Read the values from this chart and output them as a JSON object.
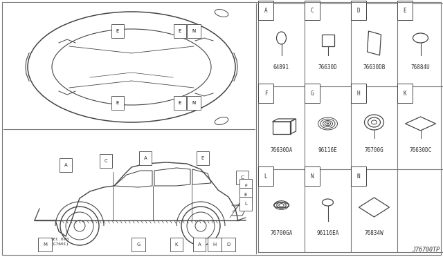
{
  "bg_color": "#ffffff",
  "line_color": "#444444",
  "grid_color": "#777777",
  "text_color": "#333333",
  "diagram_ref": "J76700TP",
  "parts": [
    {
      "label": "A",
      "part_num": "64891",
      "row": 0,
      "col": 0,
      "shape": "oval_stem"
    },
    {
      "label": "C",
      "part_num": "76630D",
      "row": 0,
      "col": 1,
      "shape": "square_stem"
    },
    {
      "label": "D",
      "part_num": "76630DB",
      "row": 0,
      "col": 2,
      "shape": "tall_rect"
    },
    {
      "label": "E",
      "part_num": "76884U",
      "row": 0,
      "col": 3,
      "shape": "horiz_oval_stem"
    },
    {
      "label": "F",
      "part_num": "76630DA",
      "row": 1,
      "col": 0,
      "shape": "box3d"
    },
    {
      "label": "G",
      "part_num": "96116E",
      "row": 1,
      "col": 1,
      "shape": "grommet_multi"
    },
    {
      "label": "H",
      "part_num": "76700G",
      "row": 1,
      "col": 2,
      "shape": "ring_washer"
    },
    {
      "label": "K",
      "part_num": "76630DC",
      "row": 1,
      "col": 3,
      "shape": "flat_diamond"
    },
    {
      "label": "L",
      "part_num": "76700GA",
      "row": 2,
      "col": 0,
      "shape": "cap_nut"
    },
    {
      "label": "N",
      "part_num": "96116EA",
      "row": 2,
      "col": 1,
      "shape": "small_oval_stem"
    },
    {
      "label": "N",
      "part_num": "76834W",
      "row": 2,
      "col": 2,
      "shape": "thin_diamond"
    }
  ]
}
